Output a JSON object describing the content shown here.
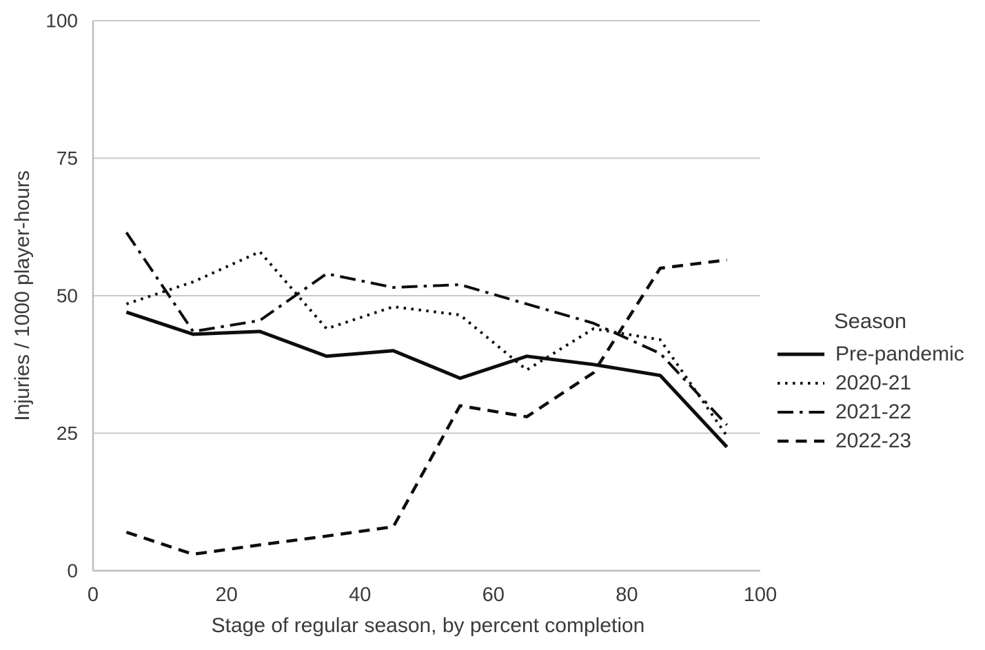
{
  "figure": {
    "background": "#ffffff",
    "text_color": "#3a3a3a",
    "line_color": "#0d0d0d",
    "grid_color": "#c9c9c9",
    "axis_color": "#bdbdbd"
  },
  "chart_data": {
    "type": "line",
    "title": "",
    "xlabel": "Stage of regular season, by percent completion",
    "ylabel": "Injuries / 1000 player-hours",
    "xlim": [
      0,
      100
    ],
    "ylim": [
      0,
      100
    ],
    "x_ticks": [
      0,
      20,
      40,
      60,
      80,
      100
    ],
    "y_ticks": [
      0,
      25,
      50,
      75,
      100
    ],
    "grid": "horizontal-only",
    "legend": {
      "title": "Season",
      "position": "right"
    },
    "x": [
      5,
      15,
      25,
      35,
      45,
      55,
      65,
      75,
      85,
      95
    ],
    "series": [
      {
        "name": "Pre-pandemic",
        "line_style": "solid",
        "values": [
          47,
          43,
          43.5,
          39,
          40,
          35,
          39,
          37.5,
          35.5,
          22.5
        ]
      },
      {
        "name": "2020-21",
        "line_style": "dotted",
        "values": [
          48.5,
          52.5,
          58,
          44,
          48,
          46.5,
          36.5,
          44,
          42,
          24.5
        ]
      },
      {
        "name": "2021-22",
        "line_style": "dashdot",
        "values": [
          61.5,
          43.5,
          45.5,
          54,
          51.5,
          52,
          48.5,
          45,
          39.5,
          26.5
        ]
      },
      {
        "name": "2022-23",
        "line_style": "dashed",
        "values": [
          7,
          3,
          4.7,
          6.3,
          8,
          30,
          28,
          36,
          55,
          56.5
        ]
      }
    ]
  }
}
